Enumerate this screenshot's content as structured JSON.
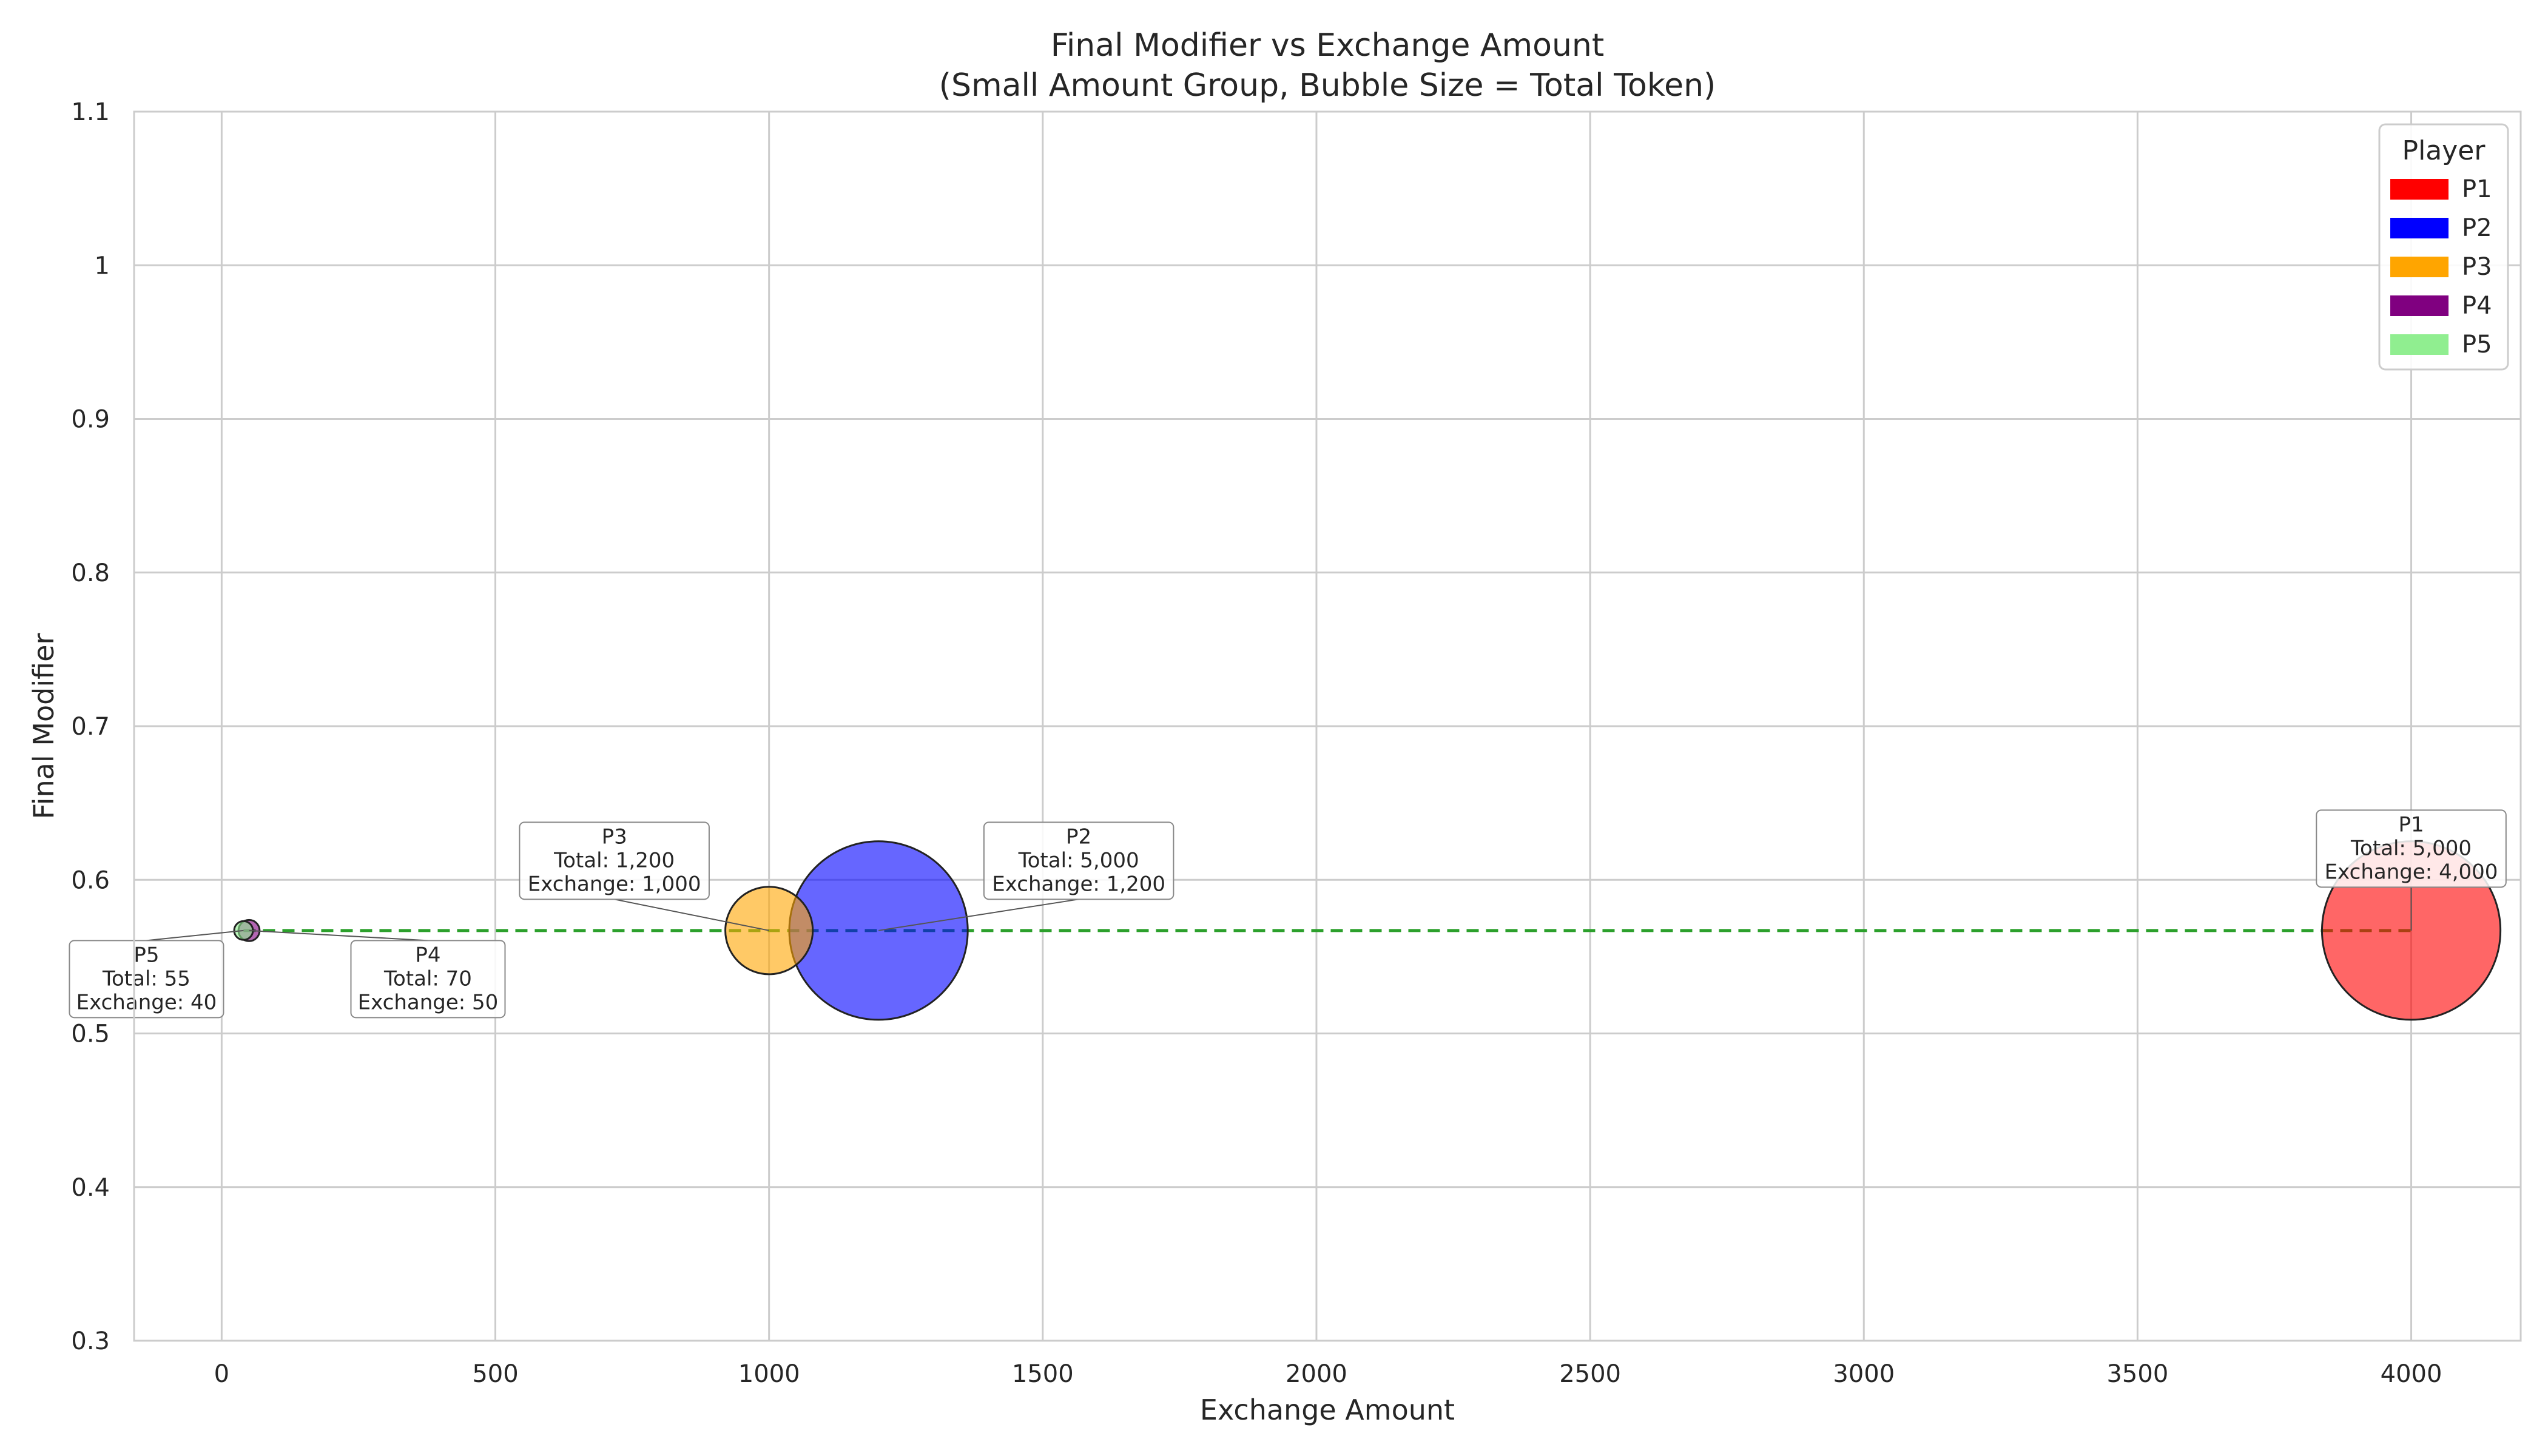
{
  "chart_data": {
    "type": "scatter",
    "title_line1": "Final Modifier vs Exchange Amount",
    "title_line2": "(Small Amount Group, Bubble Size = Total Token)",
    "xlabel": "Exchange Amount",
    "ylabel": "Final Modifier",
    "xlim": [
      -160,
      4200
    ],
    "ylim": [
      0.3,
      1.1
    ],
    "xticks": [
      0,
      500,
      1000,
      1500,
      2000,
      2500,
      3000,
      3500,
      4000
    ],
    "yticks": [
      0.3,
      0.4,
      0.5,
      0.6,
      0.7,
      0.8,
      0.9,
      1.0,
      1.1
    ],
    "grid": true,
    "legend": {
      "title": "Player",
      "placement": "top-right"
    },
    "reference_line": {
      "y": 0.567,
      "x_range": [
        40,
        4000
      ],
      "color": "#2ca02c",
      "style": "dashed"
    },
    "bubble_size_meaning": "Total Token",
    "series": [
      {
        "name": "P1",
        "color": "#ff0000",
        "exchange": 4000,
        "total": 5000,
        "final_modifier": 0.567,
        "label_lines": [
          "P1",
          "Total: 5,000",
          "Exchange: 4,000"
        ]
      },
      {
        "name": "P2",
        "color": "#0000ff",
        "exchange": 1200,
        "total": 5000,
        "final_modifier": 0.567,
        "label_lines": [
          "P2",
          "Total: 5,000",
          "Exchange: 1,200"
        ]
      },
      {
        "name": "P3",
        "color": "#ffa500",
        "exchange": 1000,
        "total": 1200,
        "final_modifier": 0.567,
        "label_lines": [
          "P3",
          "Total: 1,200",
          "Exchange: 1,000"
        ]
      },
      {
        "name": "P4",
        "color": "#800080",
        "exchange": 50,
        "total": 70,
        "final_modifier": 0.567,
        "label_lines": [
          "P4",
          "Total: 70",
          "Exchange: 50"
        ]
      },
      {
        "name": "P5",
        "color": "#90ee90",
        "exchange": 40,
        "total": 55,
        "final_modifier": 0.567,
        "label_lines": [
          "P5",
          "Total: 55",
          "Exchange: 40"
        ]
      }
    ]
  }
}
